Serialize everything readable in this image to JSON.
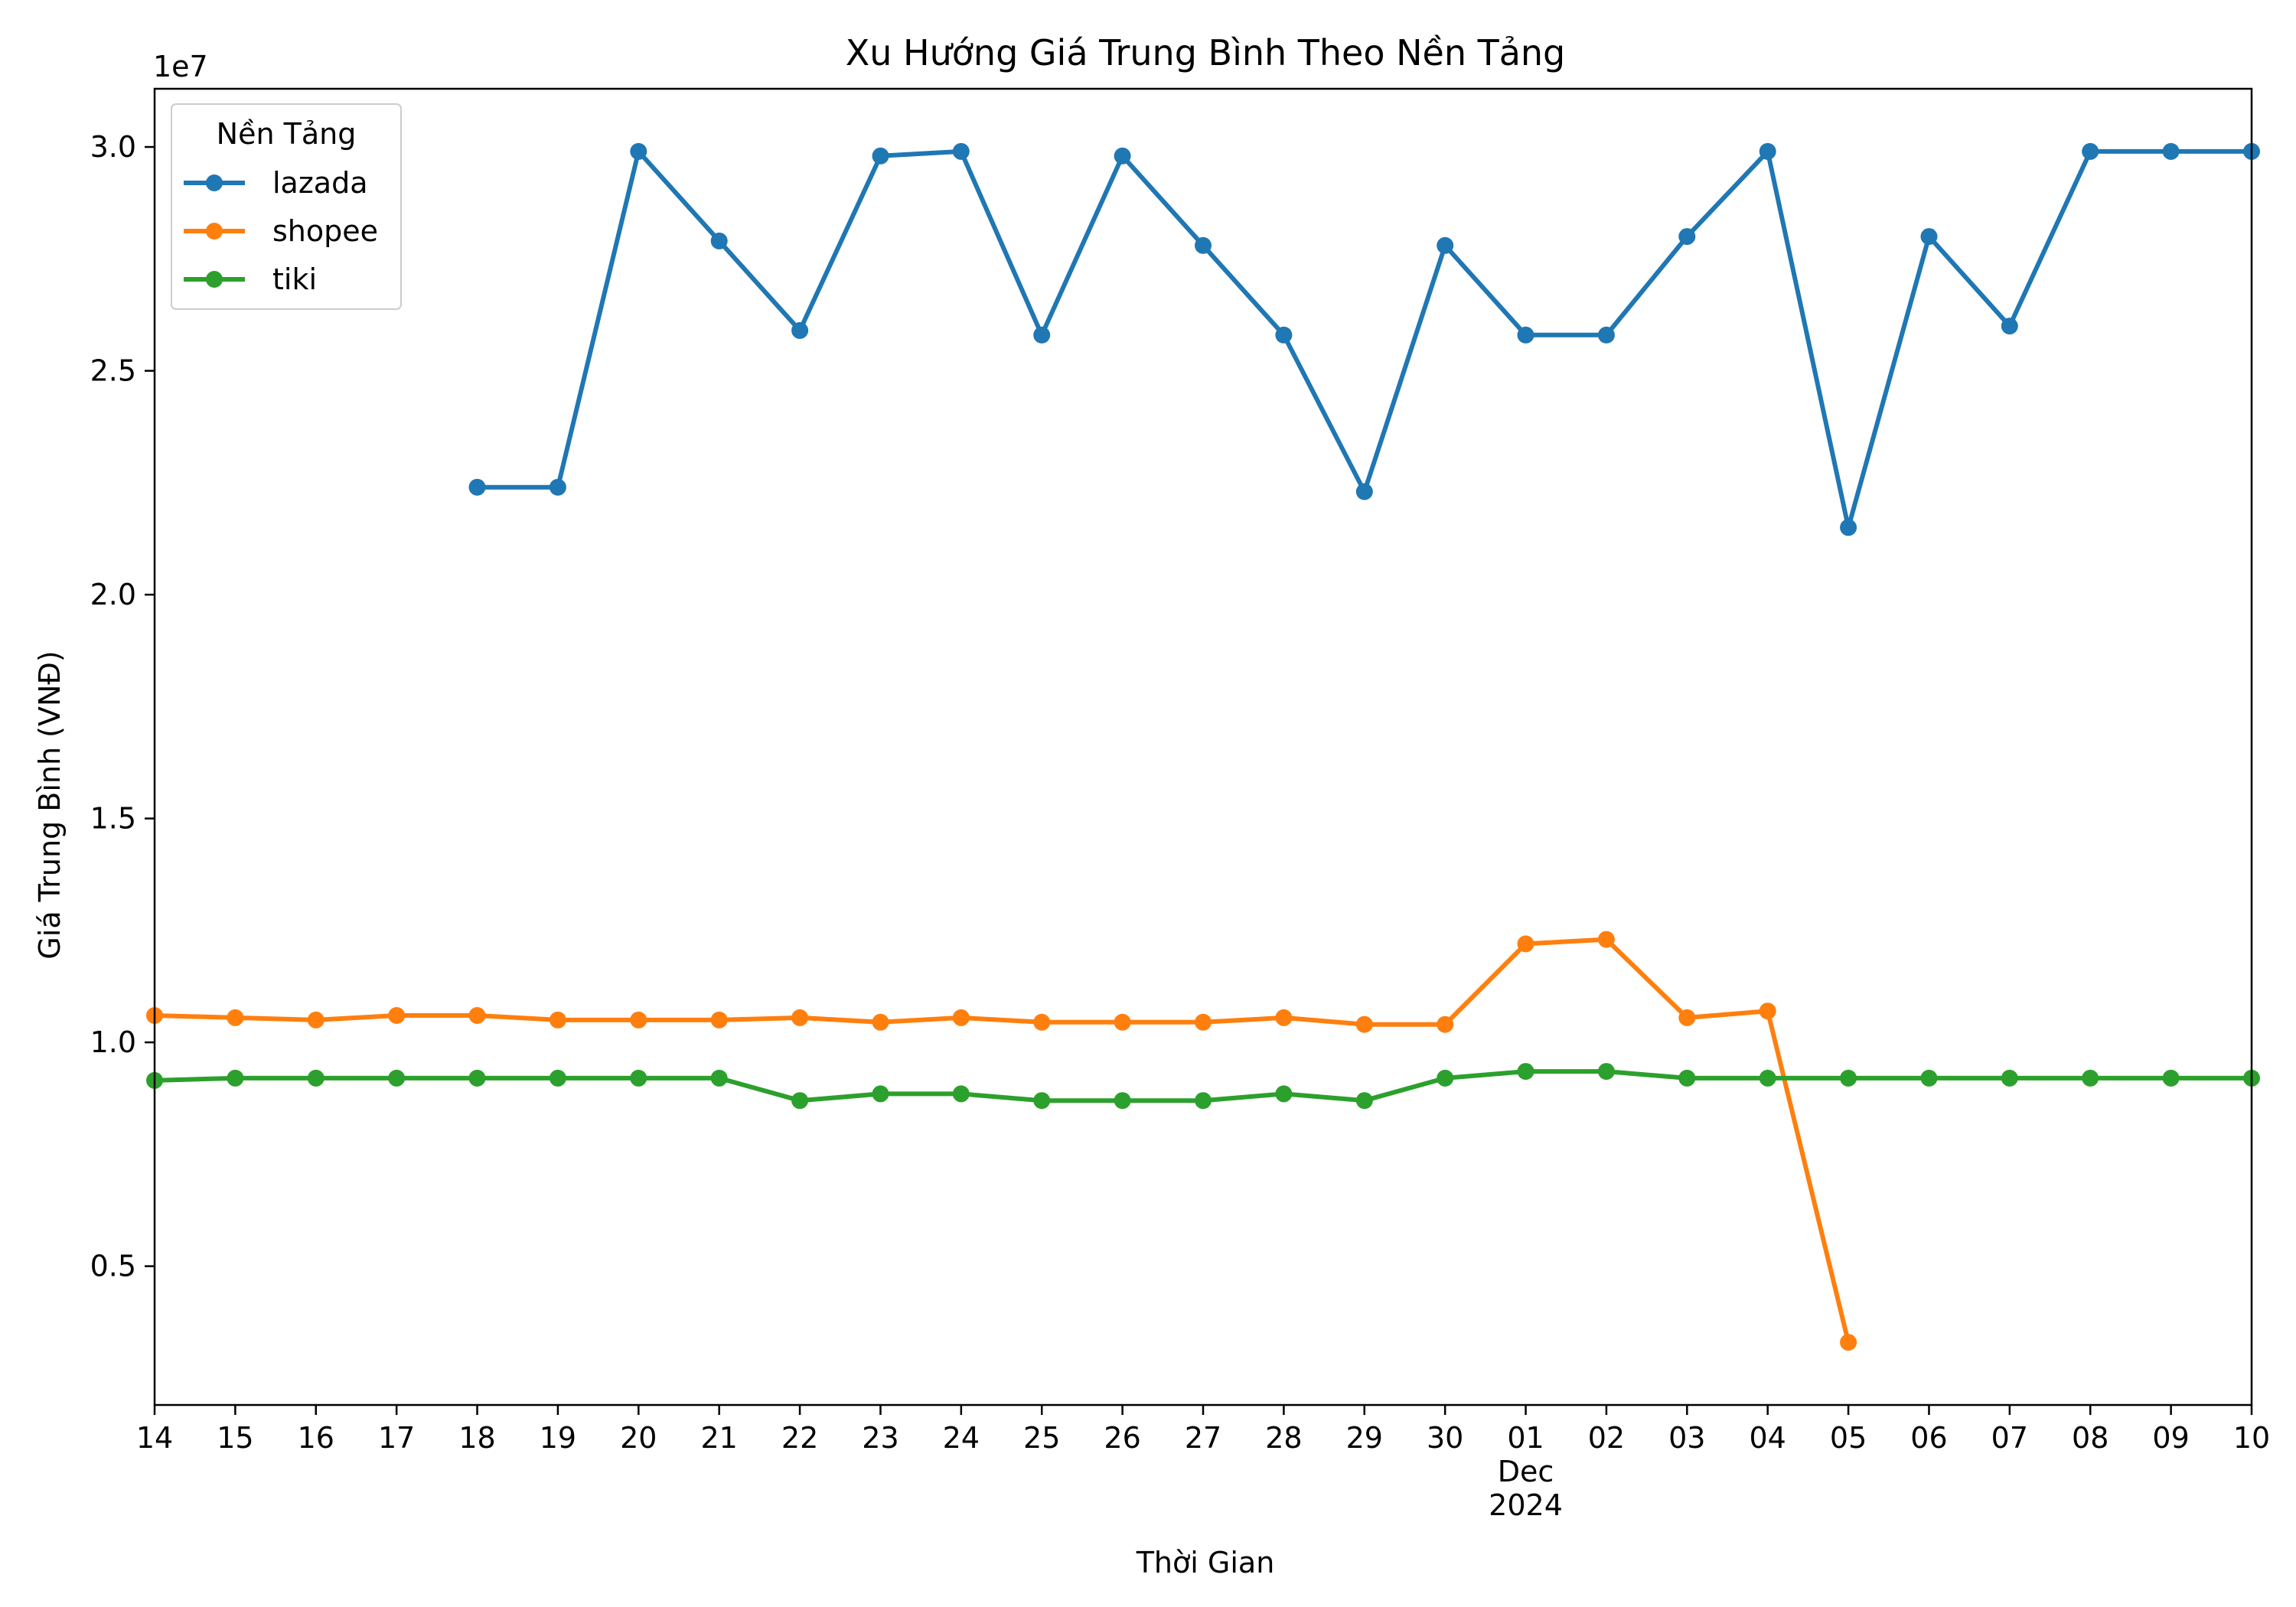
{
  "chart_data": {
    "type": "line",
    "title": "Xu Hướng Giá Trung Bình Theo Nền Tảng",
    "xlabel": "Thời Gian",
    "ylabel": "Giá Trung Bình (VNĐ)",
    "y_offset_text": "1e7",
    "x_range": [
      "2024-11-14",
      "2024-12-10"
    ],
    "x_tick_labels": [
      "14",
      "15",
      "16",
      "17",
      "18",
      "19",
      "20",
      "21",
      "22",
      "23",
      "24",
      "25",
      "26",
      "27",
      "28",
      "29",
      "30",
      "01",
      "02",
      "03",
      "04",
      "05",
      "06",
      "07",
      "08",
      "09",
      "10"
    ],
    "x_secondary_label": [
      "Dec",
      "2024"
    ],
    "ylim": [
      1.9,
      31.3
    ],
    "y_ticks": [
      5.0,
      10.0,
      15.0,
      20.0,
      25.0,
      30.0
    ],
    "y_tick_labels": [
      "0.5",
      "1.0",
      "1.5",
      "2.0",
      "2.5",
      "3.0"
    ],
    "y_unit_note": "values in millions VND",
    "grid": false,
    "legend": {
      "title": "Nền Tảng",
      "placement": "top-left"
    },
    "x": [
      "2024-11-14",
      "2024-11-15",
      "2024-11-16",
      "2024-11-17",
      "2024-11-18",
      "2024-11-19",
      "2024-11-20",
      "2024-11-21",
      "2024-11-22",
      "2024-11-23",
      "2024-11-24",
      "2024-11-25",
      "2024-11-26",
      "2024-11-27",
      "2024-11-28",
      "2024-11-29",
      "2024-11-30",
      "2024-12-01",
      "2024-12-02",
      "2024-12-03",
      "2024-12-04",
      "2024-12-05",
      "2024-12-06",
      "2024-12-07",
      "2024-12-08",
      "2024-12-09",
      "2024-12-10"
    ],
    "series": [
      {
        "name": "lazada",
        "color": "#1f77b4",
        "values": [
          null,
          null,
          null,
          null,
          22.4,
          22.4,
          29.9,
          27.9,
          25.9,
          29.8,
          29.9,
          25.8,
          29.8,
          27.8,
          25.8,
          22.3,
          27.8,
          25.8,
          25.8,
          28.0,
          29.9,
          21.5,
          28.0,
          26.0,
          29.9,
          29.9,
          29.9
        ]
      },
      {
        "name": "shopee",
        "color": "#ff7f0e",
        "values": [
          10.6,
          10.55,
          10.5,
          10.6,
          10.6,
          10.5,
          10.5,
          10.5,
          10.55,
          10.45,
          10.55,
          10.45,
          10.45,
          10.45,
          10.55,
          10.4,
          10.4,
          12.2,
          12.3,
          10.55,
          10.7,
          3.3,
          null,
          null,
          null,
          null,
          null
        ]
      },
      {
        "name": "tiki",
        "color": "#2ca02c",
        "values": [
          9.15,
          9.2,
          9.2,
          9.2,
          9.2,
          9.2,
          9.2,
          9.2,
          8.7,
          8.85,
          8.85,
          8.7,
          8.7,
          8.7,
          8.85,
          8.7,
          9.2,
          9.35,
          9.35,
          9.2,
          9.2,
          9.2,
          9.2,
          9.2,
          9.2,
          9.2,
          9.2
        ]
      }
    ]
  }
}
